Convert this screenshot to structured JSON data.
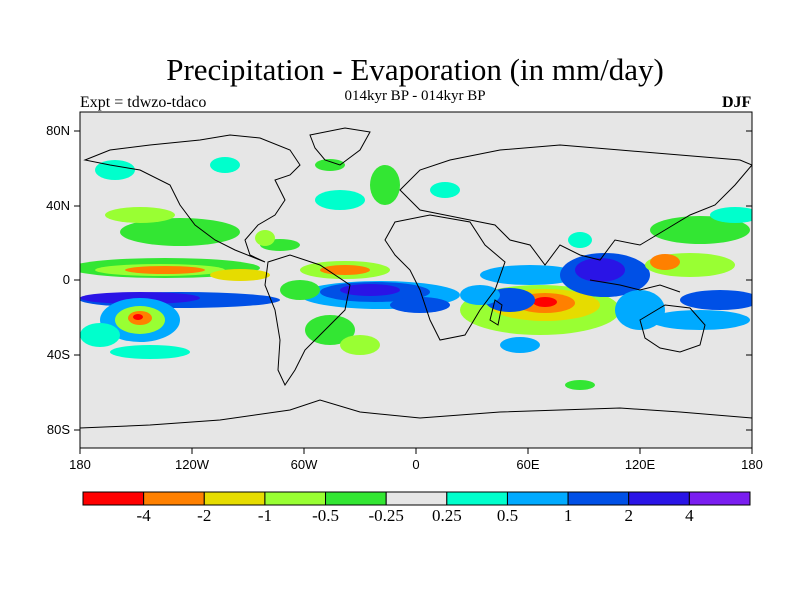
{
  "title": "Precipitation - Evaporation (in mm/day)",
  "subtitle": "014kyr BP - 014kyr BP",
  "left_label": "Expt = tdwzo-tdaco",
  "right_label": "DJF",
  "map": {
    "background_color": "#e6e6e6",
    "lat_labels": [
      "80N",
      "40N",
      "0",
      "40S",
      "80S"
    ],
    "lon_labels": [
      "180",
      "120W",
      "60W",
      "0",
      "60E",
      "120E",
      "180"
    ]
  },
  "colorbar": {
    "colors": [
      "#ff0000",
      "#ff8000",
      "#e6dc00",
      "#99ff33",
      "#33e633",
      "#e6e6e6",
      "#00ffcc",
      "#00aaff",
      "#0050e6",
      "#2a14e6",
      "#7a1ef0"
    ],
    "labels": [
      "-4",
      "-2",
      "-1",
      "-0.5",
      "-0.25",
      "0.25",
      "0.5",
      "1",
      "2",
      "4"
    ]
  }
}
